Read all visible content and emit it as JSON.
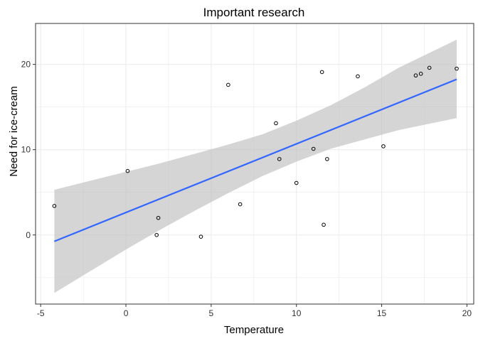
{
  "chart_data": {
    "type": "scatter",
    "title": "Important research",
    "xlabel": "Temperature",
    "ylabel": "Need for ice-cream",
    "xlim": [
      -5.3,
      20.4
    ],
    "ylim": [
      -8.1,
      24.8
    ],
    "x_ticks": [
      -5,
      0,
      5,
      10,
      15,
      20
    ],
    "x_tick_labels": [
      "-5",
      "0",
      "5",
      "10",
      "15",
      "20"
    ],
    "y_ticks": [
      0,
      10,
      20
    ],
    "y_tick_labels": [
      "0",
      "10",
      "20"
    ],
    "grid": true,
    "legend": "none",
    "points": [
      {
        "x": -4.2,
        "y": 3.4
      },
      {
        "x": 0.1,
        "y": 7.5
      },
      {
        "x": 1.8,
        "y": 0.0
      },
      {
        "x": 1.9,
        "y": 2.0
      },
      {
        "x": 4.4,
        "y": -0.2
      },
      {
        "x": 6.0,
        "y": 17.6
      },
      {
        "x": 6.7,
        "y": 3.6
      },
      {
        "x": 8.8,
        "y": 13.1
      },
      {
        "x": 9.0,
        "y": 8.9
      },
      {
        "x": 10.0,
        "y": 6.1
      },
      {
        "x": 11.0,
        "y": 10.1
      },
      {
        "x": 11.5,
        "y": 19.1
      },
      {
        "x": 11.6,
        "y": 1.2
      },
      {
        "x": 11.8,
        "y": 8.9
      },
      {
        "x": 13.6,
        "y": 18.6
      },
      {
        "x": 15.1,
        "y": 10.4
      },
      {
        "x": 17.0,
        "y": 18.7
      },
      {
        "x": 17.3,
        "y": 18.9
      },
      {
        "x": 17.8,
        "y": 19.6
      },
      {
        "x": 19.4,
        "y": 19.5
      }
    ],
    "fit": {
      "type": "linear",
      "x_range": [
        -4.2,
        19.4
      ],
      "line": [
        {
          "x": -4.2,
          "y": -0.75
        },
        {
          "x": 19.4,
          "y": 18.25
        }
      ],
      "ci_band": [
        {
          "x": -4.2,
          "lower": -6.8,
          "upper": 5.3
        },
        {
          "x": 0.0,
          "lower": -1.7,
          "upper": 7.4
        },
        {
          "x": 2.0,
          "lower": 0.6,
          "upper": 8.4
        },
        {
          "x": 4.0,
          "lower": 2.8,
          "upper": 9.5
        },
        {
          "x": 6.0,
          "lower": 4.9,
          "upper": 10.6
        },
        {
          "x": 8.0,
          "lower": 6.9,
          "upper": 11.8
        },
        {
          "x": 10.0,
          "lower": 8.6,
          "upper": 13.4
        },
        {
          "x": 12.0,
          "lower": 10.1,
          "upper": 15.2
        },
        {
          "x": 14.0,
          "lower": 11.2,
          "upper": 17.3
        },
        {
          "x": 16.0,
          "lower": 12.3,
          "upper": 19.6
        },
        {
          "x": 19.4,
          "lower": 13.7,
          "upper": 22.9
        }
      ],
      "line_color": "#3366FF",
      "band_color": "#BEBEBE"
    },
    "point_color": "#000000",
    "panel_border_color": "#333333",
    "grid_color": "#EBEBEB"
  }
}
